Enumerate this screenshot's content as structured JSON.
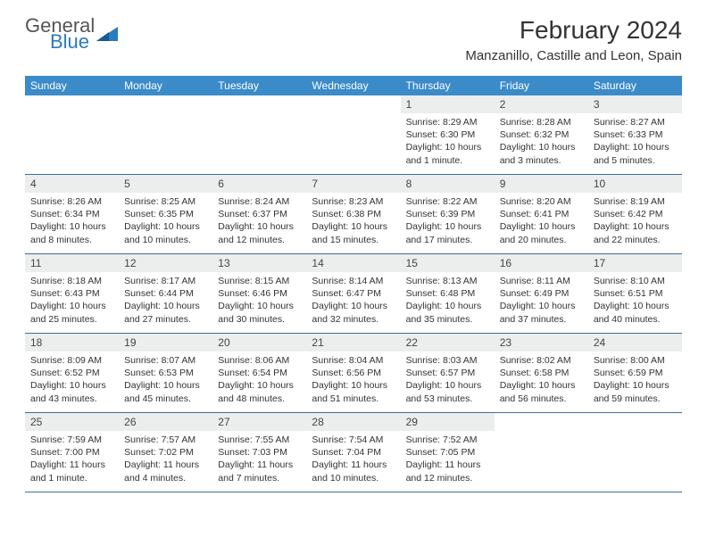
{
  "logo": {
    "general": "General",
    "blue": "Blue"
  },
  "title": "February 2024",
  "location": "Manzanillo, Castille and Leon, Spain",
  "colors": {
    "header_bg": "#3b8bc8",
    "row_border": "#3b6f9a",
    "daynum_bg": "#eceded",
    "logo_blue": "#2a7bbf"
  },
  "days_of_week": [
    "Sunday",
    "Monday",
    "Tuesday",
    "Wednesday",
    "Thursday",
    "Friday",
    "Saturday"
  ],
  "weeks": [
    [
      {
        "n": "",
        "sr": "",
        "ss": "",
        "dl": ""
      },
      {
        "n": "",
        "sr": "",
        "ss": "",
        "dl": ""
      },
      {
        "n": "",
        "sr": "",
        "ss": "",
        "dl": ""
      },
      {
        "n": "",
        "sr": "",
        "ss": "",
        "dl": ""
      },
      {
        "n": "1",
        "sr": "Sunrise: 8:29 AM",
        "ss": "Sunset: 6:30 PM",
        "dl": "Daylight: 10 hours and 1 minute."
      },
      {
        "n": "2",
        "sr": "Sunrise: 8:28 AM",
        "ss": "Sunset: 6:32 PM",
        "dl": "Daylight: 10 hours and 3 minutes."
      },
      {
        "n": "3",
        "sr": "Sunrise: 8:27 AM",
        "ss": "Sunset: 6:33 PM",
        "dl": "Daylight: 10 hours and 5 minutes."
      }
    ],
    [
      {
        "n": "4",
        "sr": "Sunrise: 8:26 AM",
        "ss": "Sunset: 6:34 PM",
        "dl": "Daylight: 10 hours and 8 minutes."
      },
      {
        "n": "5",
        "sr": "Sunrise: 8:25 AM",
        "ss": "Sunset: 6:35 PM",
        "dl": "Daylight: 10 hours and 10 minutes."
      },
      {
        "n": "6",
        "sr": "Sunrise: 8:24 AM",
        "ss": "Sunset: 6:37 PM",
        "dl": "Daylight: 10 hours and 12 minutes."
      },
      {
        "n": "7",
        "sr": "Sunrise: 8:23 AM",
        "ss": "Sunset: 6:38 PM",
        "dl": "Daylight: 10 hours and 15 minutes."
      },
      {
        "n": "8",
        "sr": "Sunrise: 8:22 AM",
        "ss": "Sunset: 6:39 PM",
        "dl": "Daylight: 10 hours and 17 minutes."
      },
      {
        "n": "9",
        "sr": "Sunrise: 8:20 AM",
        "ss": "Sunset: 6:41 PM",
        "dl": "Daylight: 10 hours and 20 minutes."
      },
      {
        "n": "10",
        "sr": "Sunrise: 8:19 AM",
        "ss": "Sunset: 6:42 PM",
        "dl": "Daylight: 10 hours and 22 minutes."
      }
    ],
    [
      {
        "n": "11",
        "sr": "Sunrise: 8:18 AM",
        "ss": "Sunset: 6:43 PM",
        "dl": "Daylight: 10 hours and 25 minutes."
      },
      {
        "n": "12",
        "sr": "Sunrise: 8:17 AM",
        "ss": "Sunset: 6:44 PM",
        "dl": "Daylight: 10 hours and 27 minutes."
      },
      {
        "n": "13",
        "sr": "Sunrise: 8:15 AM",
        "ss": "Sunset: 6:46 PM",
        "dl": "Daylight: 10 hours and 30 minutes."
      },
      {
        "n": "14",
        "sr": "Sunrise: 8:14 AM",
        "ss": "Sunset: 6:47 PM",
        "dl": "Daylight: 10 hours and 32 minutes."
      },
      {
        "n": "15",
        "sr": "Sunrise: 8:13 AM",
        "ss": "Sunset: 6:48 PM",
        "dl": "Daylight: 10 hours and 35 minutes."
      },
      {
        "n": "16",
        "sr": "Sunrise: 8:11 AM",
        "ss": "Sunset: 6:49 PM",
        "dl": "Daylight: 10 hours and 37 minutes."
      },
      {
        "n": "17",
        "sr": "Sunrise: 8:10 AM",
        "ss": "Sunset: 6:51 PM",
        "dl": "Daylight: 10 hours and 40 minutes."
      }
    ],
    [
      {
        "n": "18",
        "sr": "Sunrise: 8:09 AM",
        "ss": "Sunset: 6:52 PM",
        "dl": "Daylight: 10 hours and 43 minutes."
      },
      {
        "n": "19",
        "sr": "Sunrise: 8:07 AM",
        "ss": "Sunset: 6:53 PM",
        "dl": "Daylight: 10 hours and 45 minutes."
      },
      {
        "n": "20",
        "sr": "Sunrise: 8:06 AM",
        "ss": "Sunset: 6:54 PM",
        "dl": "Daylight: 10 hours and 48 minutes."
      },
      {
        "n": "21",
        "sr": "Sunrise: 8:04 AM",
        "ss": "Sunset: 6:56 PM",
        "dl": "Daylight: 10 hours and 51 minutes."
      },
      {
        "n": "22",
        "sr": "Sunrise: 8:03 AM",
        "ss": "Sunset: 6:57 PM",
        "dl": "Daylight: 10 hours and 53 minutes."
      },
      {
        "n": "23",
        "sr": "Sunrise: 8:02 AM",
        "ss": "Sunset: 6:58 PM",
        "dl": "Daylight: 10 hours and 56 minutes."
      },
      {
        "n": "24",
        "sr": "Sunrise: 8:00 AM",
        "ss": "Sunset: 6:59 PM",
        "dl": "Daylight: 10 hours and 59 minutes."
      }
    ],
    [
      {
        "n": "25",
        "sr": "Sunrise: 7:59 AM",
        "ss": "Sunset: 7:00 PM",
        "dl": "Daylight: 11 hours and 1 minute."
      },
      {
        "n": "26",
        "sr": "Sunrise: 7:57 AM",
        "ss": "Sunset: 7:02 PM",
        "dl": "Daylight: 11 hours and 4 minutes."
      },
      {
        "n": "27",
        "sr": "Sunrise: 7:55 AM",
        "ss": "Sunset: 7:03 PM",
        "dl": "Daylight: 11 hours and 7 minutes."
      },
      {
        "n": "28",
        "sr": "Sunrise: 7:54 AM",
        "ss": "Sunset: 7:04 PM",
        "dl": "Daylight: 11 hours and 10 minutes."
      },
      {
        "n": "29",
        "sr": "Sunrise: 7:52 AM",
        "ss": "Sunset: 7:05 PM",
        "dl": "Daylight: 11 hours and 12 minutes."
      },
      {
        "n": "",
        "sr": "",
        "ss": "",
        "dl": ""
      },
      {
        "n": "",
        "sr": "",
        "ss": "",
        "dl": ""
      }
    ]
  ]
}
